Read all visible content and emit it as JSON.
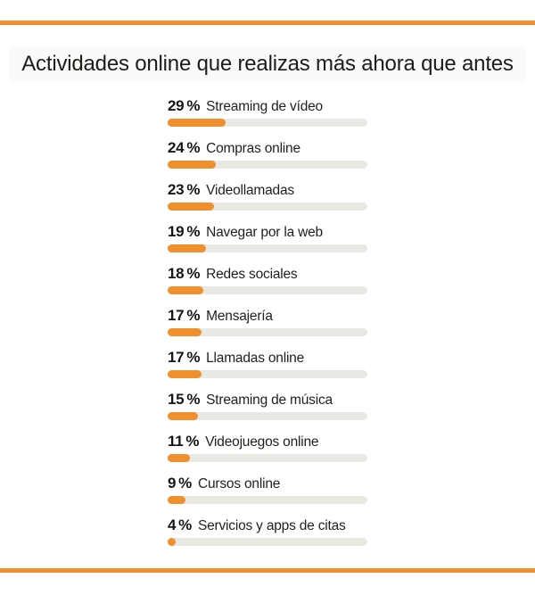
{
  "page": {
    "accent_color": "#EF8F2E",
    "track_color": "#E9E8E2",
    "background_color": "#FFFFFF"
  },
  "header": {
    "title": "Actividades online que realizas más ahora que antes"
  },
  "chart_data": {
    "type": "bar",
    "orientation": "horizontal",
    "title": "Actividades online que realizas más ahora que antes",
    "unit": "%",
    "xlim": [
      0,
      100
    ],
    "grid": false,
    "legend": false,
    "bar_color": "#EF8F2E",
    "track_full_scale": true,
    "categories": [
      "Streaming de vídeo",
      "Compras online",
      "Videollamadas",
      "Navegar por la web",
      "Redes sociales",
      "Mensajería",
      "Llamadas online",
      "Streaming de música",
      "Videojuegos online",
      "Cursos online",
      "Servicios y apps de citas"
    ],
    "values": [
      29,
      24,
      23,
      19,
      18,
      17,
      17,
      15,
      11,
      9,
      4
    ]
  }
}
